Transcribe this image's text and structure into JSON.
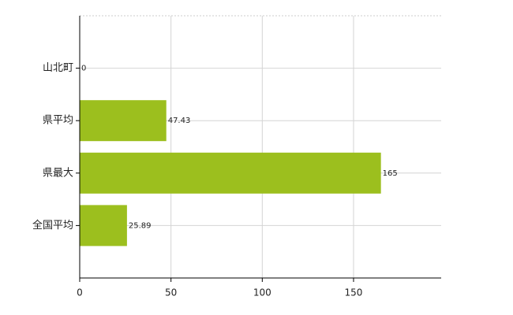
{
  "chart_data": {
    "type": "bar",
    "orientation": "horizontal",
    "categories": [
      "山北町",
      "県平均",
      "県最大",
      "全国平均"
    ],
    "values": [
      0,
      47.43,
      165,
      25.89
    ],
    "color": "#9cbf1e",
    "xlim": [
      0,
      198
    ],
    "xticks": [
      0,
      50,
      100,
      150
    ],
    "grid": true
  }
}
